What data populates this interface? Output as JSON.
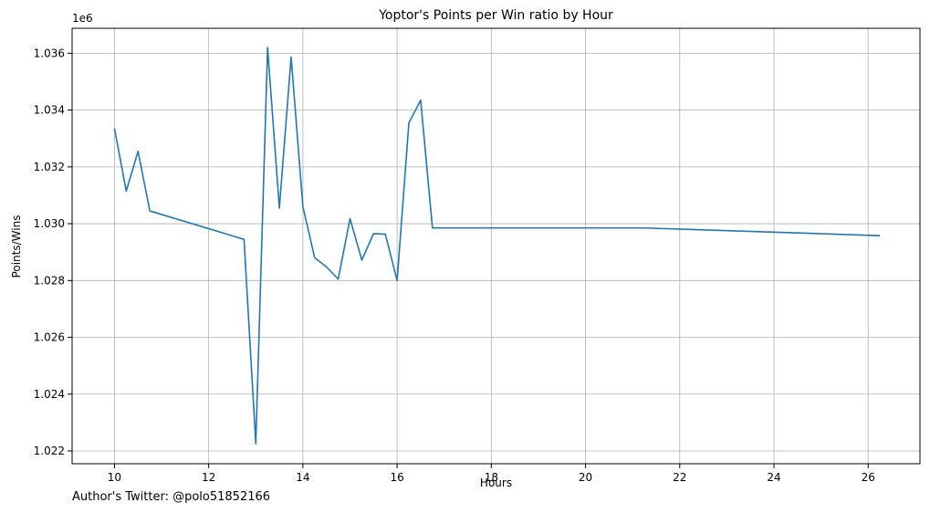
{
  "chart_data": {
    "type": "line",
    "title": "Yoptor's Points per Win ratio by Hour",
    "xlabel": "Hours",
    "ylabel": "Points/Wins",
    "y_offset_label": "1e6",
    "xlim": [
      9.1,
      27.1
    ],
    "ylim": [
      1.02155,
      1.03688
    ],
    "x_ticks": [
      10,
      12,
      14,
      16,
      18,
      20,
      22,
      24,
      26
    ],
    "x_tick_labels": [
      "10",
      "12",
      "14",
      "16",
      "18",
      "20",
      "22",
      "24",
      "26"
    ],
    "y_ticks": [
      1.022,
      1.024,
      1.026,
      1.028,
      1.03,
      1.032,
      1.034,
      1.036
    ],
    "y_tick_labels": [
      "1.022",
      "1.024",
      "1.026",
      "1.028",
      "1.030",
      "1.032",
      "1.034",
      "1.036"
    ],
    "grid": true,
    "series": [
      {
        "color": "#1f77b4",
        "x": [
          10.0,
          10.25,
          10.5,
          10.75,
          12.75,
          13.0,
          13.25,
          13.5,
          13.75,
          14.0,
          14.25,
          14.5,
          14.75,
          15.0,
          15.25,
          15.5,
          15.75,
          16.0,
          16.25,
          16.5,
          16.75,
          21.25,
          26.25
        ],
        "y": [
          1.03335,
          1.03115,
          1.03255,
          1.03045,
          1.02945,
          1.02225,
          1.0362,
          1.03055,
          1.03587,
          1.0306,
          1.0288,
          1.02848,
          1.02805,
          1.03018,
          1.02872,
          1.02965,
          1.02963,
          1.028,
          1.03355,
          1.03435,
          1.02985,
          1.02985,
          1.02958
        ]
      }
    ]
  },
  "footer": {
    "credit": "Author's Twitter: @polo51852166"
  }
}
